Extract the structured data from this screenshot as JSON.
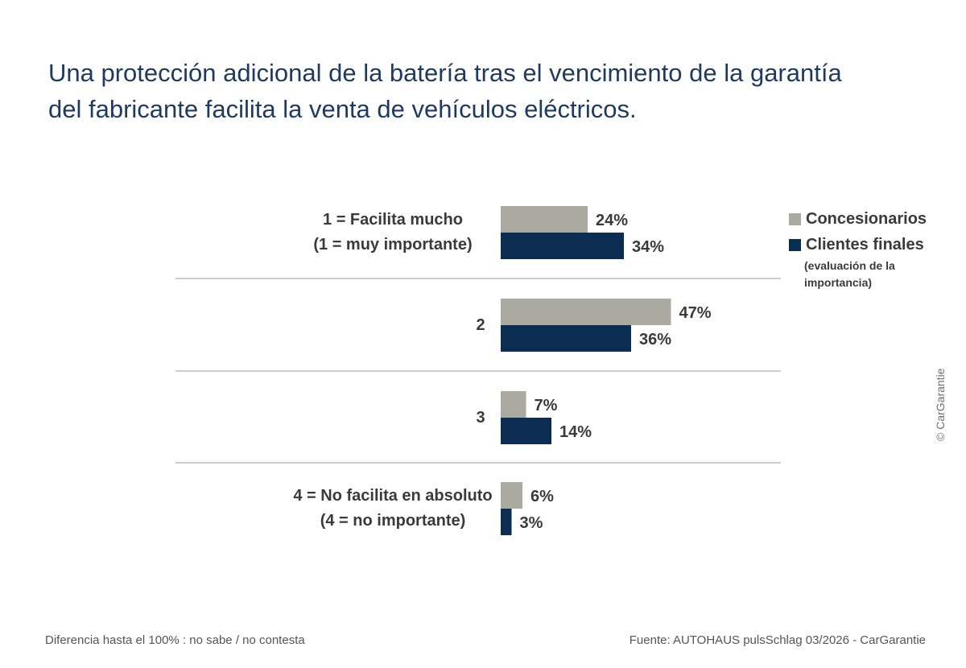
{
  "title": {
    "line1": "Una protección adicional de la batería tras el vencimiento de la garantía",
    "line2": "del fabricante facilita la venta de vehículos eléctricos."
  },
  "legend": {
    "series1": "Concesionarios",
    "series2": "Clientes finales",
    "note": "(evaluación de la importancia)"
  },
  "copyright": "© CarGarantie",
  "footer": {
    "left": "Diferencia hasta el 100% : no sabe / no contesta",
    "right": "Fuente: AUTOHAUS pulsSchlag 03/2026 - CarGarantie"
  },
  "colors": {
    "concesionarios": "#aaaaa1",
    "clientes": "#0c2d52",
    "title": "#1f3a5f",
    "separator": "#9a9a9a"
  },
  "chart_data": {
    "type": "bar",
    "orientation": "horizontal",
    "categories": [
      [
        "1 = Facilita mucho",
        "(1 = muy importante)"
      ],
      [
        "2"
      ],
      [
        "3"
      ],
      [
        "4 = No facilita en absoluto",
        "(4 = no importante)"
      ]
    ],
    "series": [
      {
        "name": "Concesionarios",
        "values": [
          24,
          47,
          7,
          6
        ],
        "labels": [
          "24%",
          "47%",
          "7%",
          "6%"
        ]
      },
      {
        "name": "Clientes finales",
        "values": [
          34,
          36,
          14,
          3
        ],
        "labels": [
          "34%",
          "36%",
          "14%",
          "3%"
        ]
      }
    ],
    "xlim": [
      0,
      100
    ]
  }
}
